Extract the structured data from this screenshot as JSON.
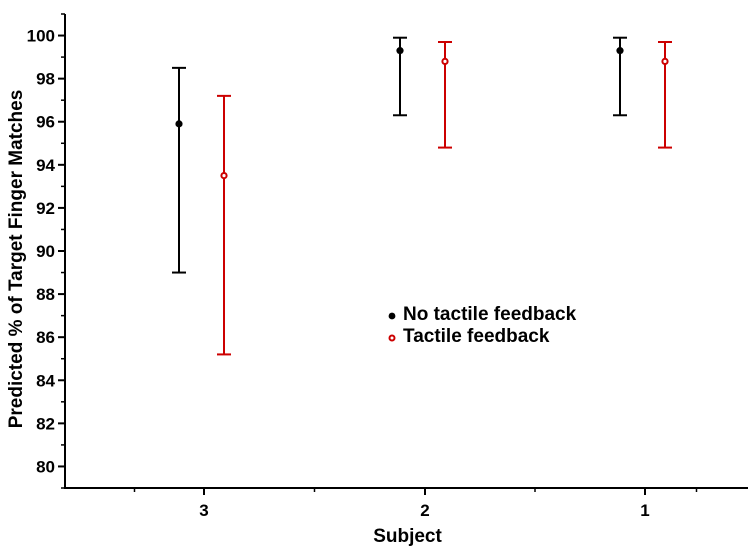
{
  "chart_data": {
    "type": "scatter",
    "subtype": "error-bar",
    "title": "",
    "xlabel": "Subject",
    "ylabel": "Predicted %  of Target Finger Matches",
    "categories": [
      "3",
      "2",
      "1"
    ],
    "ylim": [
      79,
      101
    ],
    "yticks": [
      80,
      82,
      84,
      86,
      88,
      90,
      92,
      94,
      96,
      98,
      100
    ],
    "ytick_labels": [
      "80",
      "82",
      "84",
      "86",
      "88",
      "90",
      "92",
      "94",
      "96",
      "98",
      "100"
    ],
    "grid": false,
    "legend_position": "center-right",
    "series": [
      {
        "name": "No tactile feedback",
        "color": "#000000",
        "marker": "filled-circle",
        "points": [
          {
            "category": "3",
            "value": 95.9,
            "low": 89.0,
            "high": 98.5
          },
          {
            "category": "2",
            "value": 99.3,
            "low": 96.3,
            "high": 99.9
          },
          {
            "category": "1",
            "value": 99.3,
            "low": 96.3,
            "high": 99.9
          }
        ]
      },
      {
        "name": "Tactile feedback",
        "color": "#cc0000",
        "marker": "open-circle",
        "points": [
          {
            "category": "3",
            "value": 93.5,
            "low": 85.2,
            "high": 97.2
          },
          {
            "category": "2",
            "value": 98.8,
            "low": 94.8,
            "high": 99.7
          },
          {
            "category": "1",
            "value": 98.8,
            "low": 94.8,
            "high": 99.7
          }
        ]
      }
    ]
  }
}
